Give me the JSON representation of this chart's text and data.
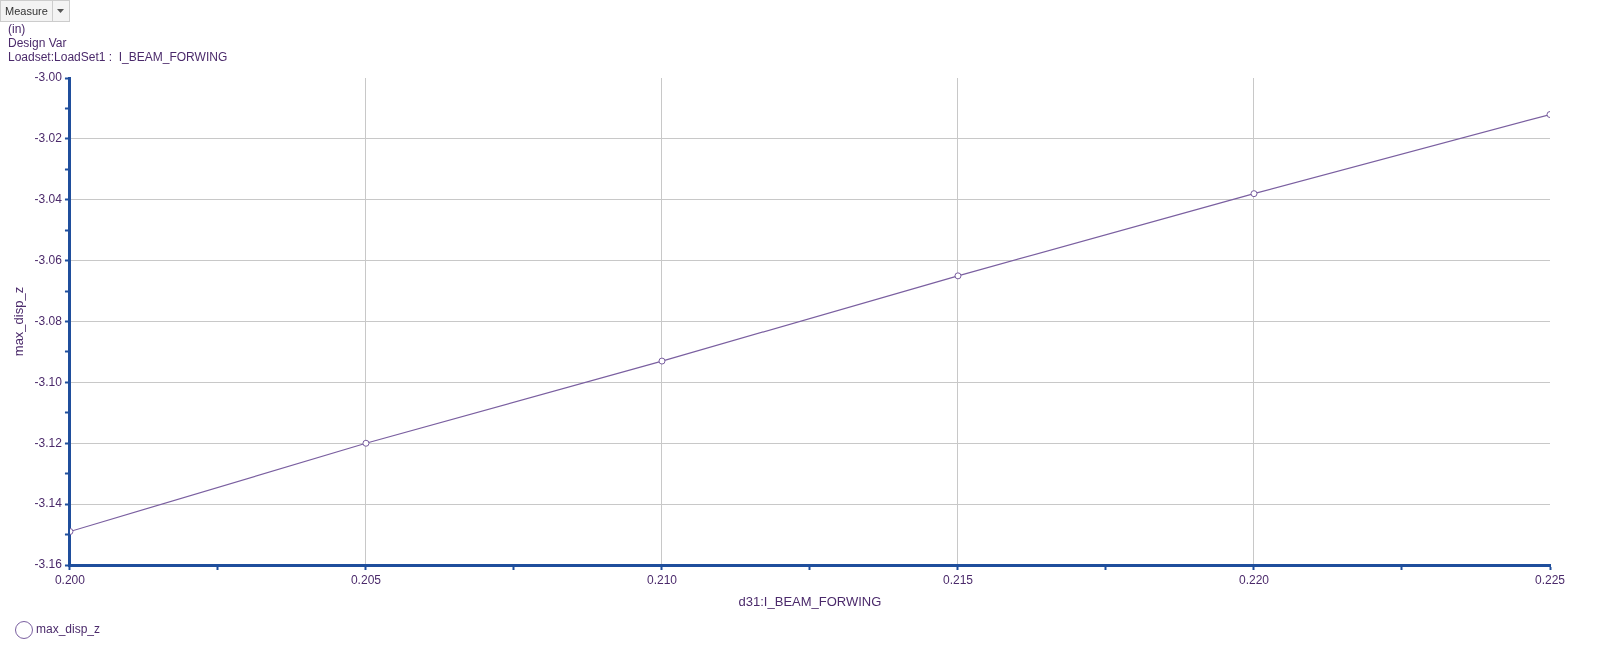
{
  "chart_data": {
    "type": "line",
    "title": "Design Var",
    "subtitle": "Loadset:LoadSet1 :  I_BEAM_FORWING",
    "annotations": [
      "Measure",
      "(in)"
    ],
    "xlabel": "d31:I_BEAM_FORWING",
    "ylabel": "max_disp_z",
    "x": [
      0.2,
      0.205,
      0.21,
      0.215,
      0.22,
      0.225
    ],
    "series": [
      {
        "name": "max_disp_z",
        "color": "#7a5fa0",
        "values": [
          -3.149,
          -3.12,
          -3.093,
          -3.065,
          -3.038,
          -3.012
        ]
      }
    ],
    "xlim": [
      0.2,
      0.225
    ],
    "xticks": [
      {
        "value": 0.2,
        "label": "0.200"
      },
      {
        "value": 0.2025,
        "label": null
      },
      0.205,
      {
        "value": 0.2075,
        "label": null
      },
      {
        "value": 0.21,
        "label": "0.210"
      },
      {
        "value": 0.2125,
        "label": null
      },
      0.215,
      {
        "value": 0.2175,
        "label": null
      },
      {
        "value": 0.22,
        "label": "0.220"
      },
      {
        "value": 0.2225,
        "label": null
      },
      0.225
    ],
    "ylim": [
      -3.16,
      -3.0
    ],
    "yticks": [
      {
        "value": -3.16,
        "label": "-3.16"
      },
      {
        "value": -3.15,
        "label": null
      },
      -3.14,
      {
        "value": -3.13,
        "label": null
      },
      -3.12,
      {
        "value": -3.11,
        "label": null
      },
      {
        "value": -3.1,
        "label": "-3.10"
      },
      {
        "value": -3.09,
        "label": null
      },
      -3.08,
      {
        "value": -3.07,
        "label": null
      },
      -3.06,
      {
        "value": -3.05,
        "label": null
      },
      -3.04,
      {
        "value": -3.03,
        "label": null
      },
      -3.02,
      {
        "value": -3.01,
        "label": null
      },
      {
        "value": -3.0,
        "label": "-3.00"
      }
    ],
    "grid": true,
    "legend": "bottom left",
    "marker": "circle",
    "line_style": "solid"
  }
}
